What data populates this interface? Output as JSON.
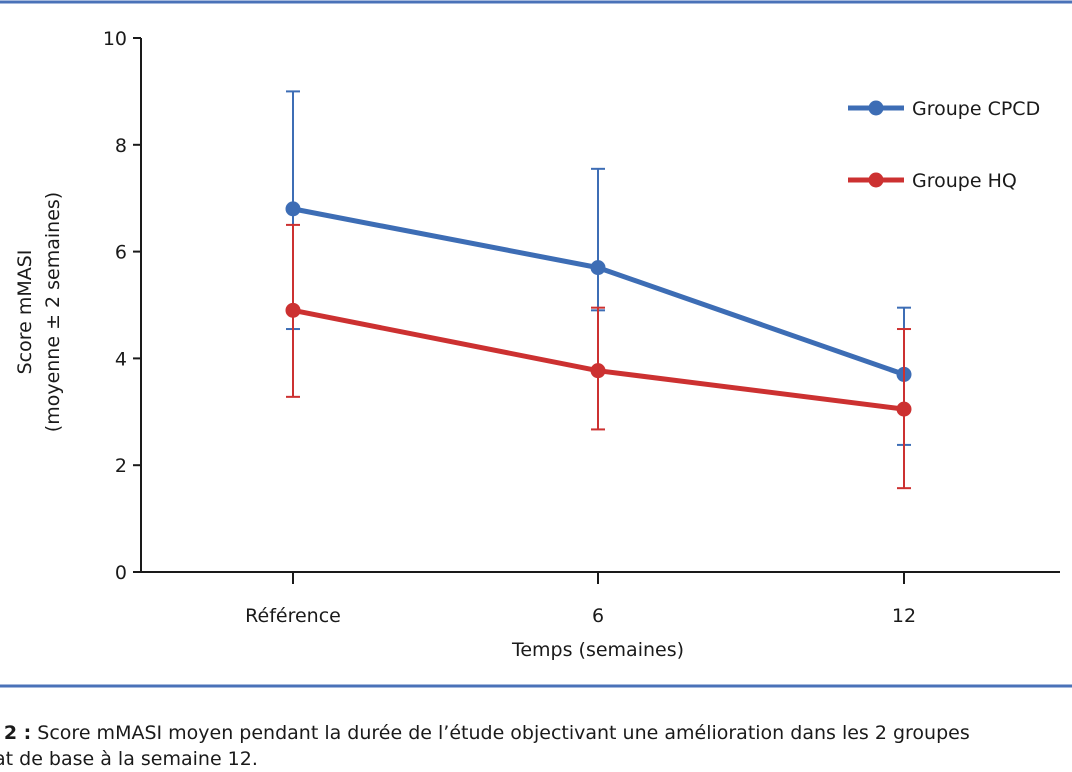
{
  "chart_data": {
    "type": "line",
    "xlabel": "Temps (semaines)",
    "ylabel_line1": "Score mMASI",
    "ylabel_line2": "(moyenne ± 2 semaines)",
    "categories": [
      "Référence",
      "6",
      "12"
    ],
    "ylim": [
      0,
      10
    ],
    "yticks": [
      0,
      2,
      4,
      6,
      8,
      10
    ],
    "grid": false,
    "legend_position": "top-right",
    "series": [
      {
        "name": "Groupe CPCD",
        "color": "#3d6db5",
        "values": [
          6.8,
          5.7,
          3.7
        ],
        "error_upper": [
          9.0,
          7.55,
          4.95
        ],
        "error_lower": [
          4.55,
          4.9,
          2.38
        ]
      },
      {
        "name": "Groupe HQ",
        "color": "#cc3131",
        "values": [
          4.9,
          3.77,
          3.05
        ],
        "error_upper": [
          6.5,
          4.95,
          4.55
        ],
        "error_lower": [
          3.28,
          2.67,
          1.57
        ]
      }
    ]
  },
  "frame_color": "#4a72b8",
  "caption": {
    "lead": ". 2 :",
    "text": " Score mMASI moyen pendant la durée de l’étude objectivant une amélioration dans les 2 groupes",
    "line2": "at de base à la semaine 12."
  }
}
